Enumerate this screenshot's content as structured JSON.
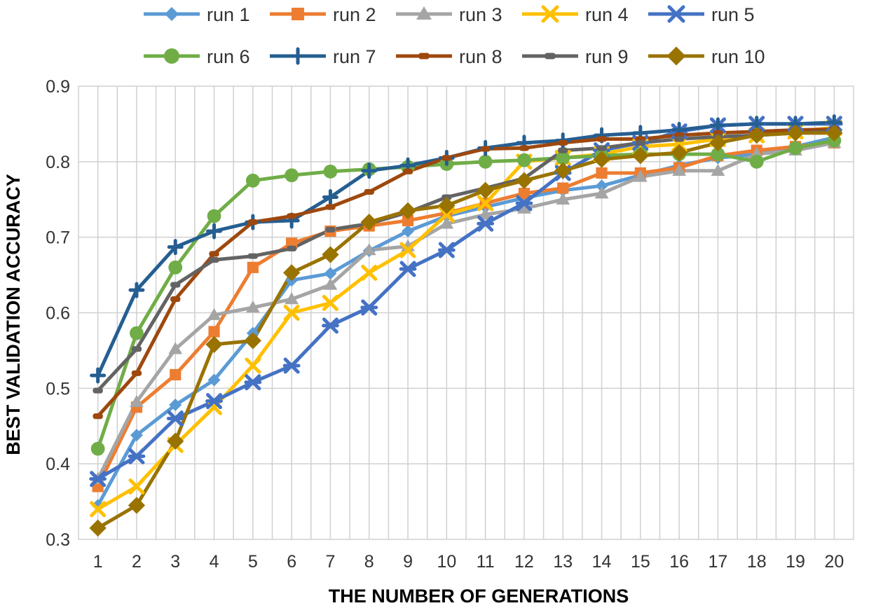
{
  "chart_data": {
    "type": "line",
    "title": "",
    "xlabel": "THE NUMBER OF GENERATIONS",
    "ylabel": "BEST VALIDATION ACCURACY",
    "x": [
      1,
      2,
      3,
      4,
      5,
      6,
      7,
      8,
      9,
      10,
      11,
      12,
      13,
      14,
      15,
      16,
      17,
      18,
      19,
      20
    ],
    "xlim": [
      0.5,
      20.5
    ],
    "ylim": [
      0.3,
      0.9
    ],
    "y_ticks": [
      "0.3",
      "0.4",
      "0.5",
      "0.6",
      "0.7",
      "0.8",
      "0.9"
    ],
    "x_ticks": [
      "1",
      "2",
      "3",
      "4",
      "5",
      "6",
      "7",
      "8",
      "9",
      "10",
      "11",
      "12",
      "13",
      "14",
      "15",
      "16",
      "17",
      "18",
      "19",
      "20"
    ],
    "grid": true,
    "legend_position": "top",
    "series": [
      {
        "name": "run 1",
        "color": "#5B9BD5",
        "marker": "diamond",
        "values": [
          0.345,
          0.438,
          0.478,
          0.511,
          0.573,
          0.643,
          0.652,
          0.682,
          0.708,
          0.728,
          0.74,
          0.752,
          0.762,
          0.768,
          0.782,
          0.795,
          0.805,
          0.81,
          0.82,
          0.832
        ]
      },
      {
        "name": "run 2",
        "color": "#ED7D31",
        "marker": "square",
        "values": [
          0.37,
          0.475,
          0.518,
          0.575,
          0.66,
          0.692,
          0.708,
          0.715,
          0.722,
          0.732,
          0.745,
          0.758,
          0.765,
          0.785,
          0.785,
          0.792,
          0.808,
          0.815,
          0.82,
          0.825
        ]
      },
      {
        "name": "run 3",
        "color": "#A5A5A5",
        "marker": "triangle",
        "values": [
          0.38,
          0.482,
          0.552,
          0.597,
          0.607,
          0.618,
          0.637,
          0.683,
          0.688,
          0.718,
          0.73,
          0.738,
          0.75,
          0.758,
          0.78,
          0.788,
          0.788,
          0.81,
          0.815,
          0.825
        ]
      },
      {
        "name": "run 4",
        "color": "#FFC000",
        "marker": "x",
        "values": [
          0.34,
          0.37,
          0.425,
          0.475,
          0.53,
          0.6,
          0.613,
          0.653,
          0.683,
          0.73,
          0.745,
          0.8,
          0.805,
          0.81,
          0.82,
          0.823,
          0.83,
          0.835,
          0.84,
          0.845
        ]
      },
      {
        "name": "run 5",
        "color": "#4472C4",
        "marker": "x-star",
        "values": [
          0.38,
          0.41,
          0.46,
          0.483,
          0.508,
          0.53,
          0.583,
          0.607,
          0.658,
          0.683,
          0.718,
          0.745,
          0.785,
          0.815,
          0.825,
          0.84,
          0.848,
          0.85,
          0.85,
          0.85
        ]
      },
      {
        "name": "run 6",
        "color": "#70AD47",
        "marker": "circle",
        "values": [
          0.42,
          0.573,
          0.66,
          0.728,
          0.775,
          0.782,
          0.787,
          0.79,
          0.793,
          0.797,
          0.8,
          0.802,
          0.805,
          0.808,
          0.81,
          0.81,
          0.81,
          0.8,
          0.818,
          0.828
        ]
      },
      {
        "name": "run 7",
        "color": "#255E91",
        "marker": "plus",
        "values": [
          0.517,
          0.63,
          0.687,
          0.708,
          0.72,
          0.722,
          0.753,
          0.788,
          0.795,
          0.805,
          0.818,
          0.825,
          0.828,
          0.835,
          0.838,
          0.842,
          0.848,
          0.85,
          0.85,
          0.852
        ]
      },
      {
        "name": "run 8",
        "color": "#9E480E",
        "marker": "dash",
        "values": [
          0.463,
          0.52,
          0.618,
          0.678,
          0.72,
          0.728,
          0.74,
          0.76,
          0.787,
          0.805,
          0.817,
          0.818,
          0.825,
          0.83,
          0.83,
          0.835,
          0.838,
          0.84,
          0.842,
          0.843
        ]
      },
      {
        "name": "run 9",
        "color": "#636363",
        "marker": "dash",
        "values": [
          0.497,
          0.552,
          0.637,
          0.67,
          0.675,
          0.685,
          0.71,
          0.718,
          0.733,
          0.753,
          0.765,
          0.778,
          0.815,
          0.818,
          0.825,
          0.83,
          0.833,
          0.835,
          0.838,
          0.84
        ]
      },
      {
        "name": "run 10",
        "color": "#997300",
        "marker": "diamond-large",
        "values": [
          0.315,
          0.345,
          0.43,
          0.558,
          0.563,
          0.653,
          0.677,
          0.72,
          0.735,
          0.742,
          0.762,
          0.775,
          0.788,
          0.803,
          0.808,
          0.812,
          0.825,
          0.835,
          0.838,
          0.838
        ]
      }
    ]
  }
}
